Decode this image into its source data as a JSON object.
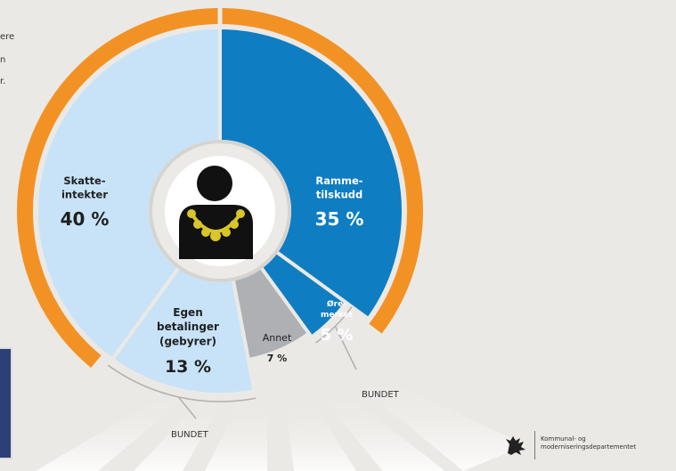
{
  "intro_fragments": [
    "ere",
    "n",
    "r."
  ],
  "chart_data": {
    "type": "pie",
    "title": "",
    "categories": [
      "Skatte-\nintekter",
      "Ramme-\ntilskudd",
      "Øre-\nmerket",
      "Annet",
      "Egen\nbetalinger\n(gebyrer)"
    ],
    "values": [
      40,
      35,
      5,
      7,
      13
    ],
    "value_labels": [
      "40 %",
      "35 %",
      "5 %",
      "7 %",
      "13 %"
    ],
    "colors": [
      "#c8e3f7",
      "#0f7dc2",
      "#0f7dc2",
      "#aeb0b4",
      "#c8e3f7"
    ],
    "text_colors": [
      "#1f1f1f",
      "#ffffff",
      "#ffffff",
      "#1f1f1f",
      "#1f1f1f"
    ],
    "ring_color": "#f39224",
    "bracket_labels": [
      "BUNDET",
      "BUNDET"
    ]
  },
  "footer": {
    "icon": "lion-coat-of-arms-icon",
    "line1": "Kommunal- og",
    "line2": "moderniseringsdepartementet"
  }
}
